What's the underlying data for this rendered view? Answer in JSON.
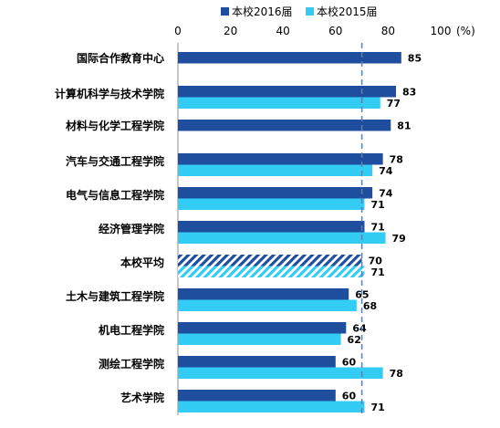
{
  "chart_data": {
    "type": "bar",
    "orientation": "horizontal",
    "title": "",
    "unit_label": "(%)",
    "xlim": [
      0,
      100
    ],
    "x_ticks": [
      "0",
      "20",
      "40",
      "60",
      "80",
      "100"
    ],
    "reference_line_value": 70,
    "legend_position": "top",
    "categories": [
      "国际合作教育中心",
      "计算机科学与技术学院",
      "材料与化学工程学院",
      "汽车与交通工程学院",
      "电气与信息工程学院",
      "经济管理学院",
      "本校平均",
      "土木与建筑工程学院",
      "机电工程学院",
      "测绘工程学院",
      "艺术学院"
    ],
    "highlight_category": "本校平均",
    "series": [
      {
        "name": "本校2016届",
        "color": "#1f4e9f",
        "values": [
          85,
          83,
          81,
          78,
          74,
          71,
          70,
          65,
          64,
          60,
          60
        ]
      },
      {
        "name": "本校2015届",
        "color": "#33ccf5",
        "values": [
          null,
          77,
          null,
          74,
          71,
          79,
          71,
          68,
          62,
          78,
          71
        ]
      }
    ]
  }
}
